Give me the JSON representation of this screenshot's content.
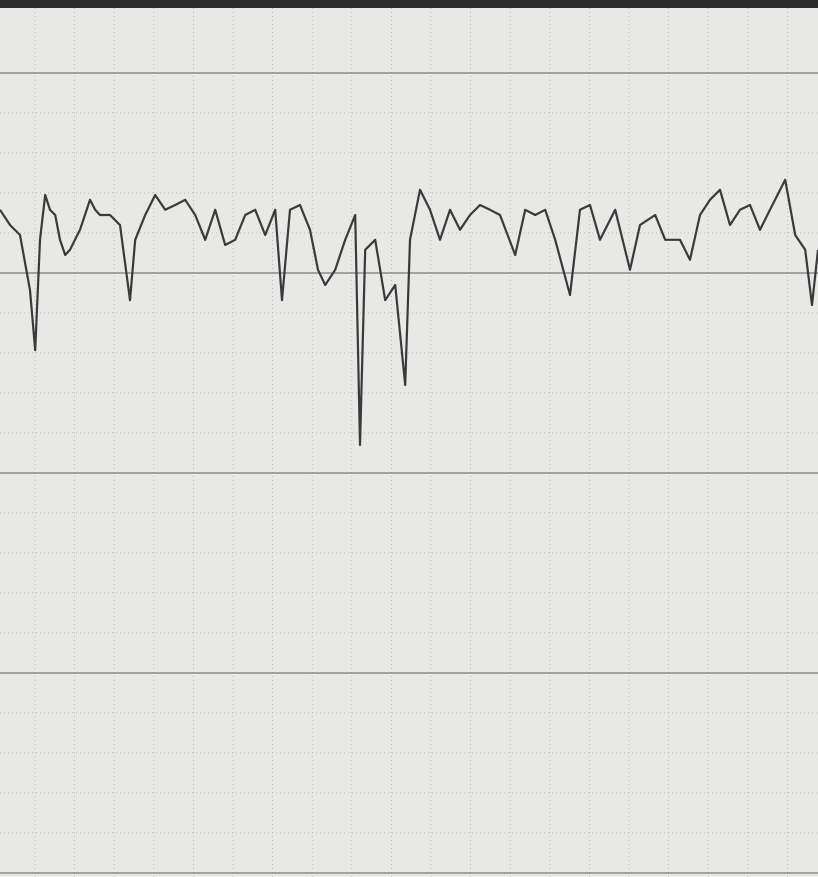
{
  "chart_data": {
    "type": "line",
    "color": "#3a3a3a",
    "xlim": [
      0,
      20.45
    ],
    "ylim": [
      -15.1,
      6.625
    ],
    "x": [
      0,
      0.25,
      0.5,
      0.75,
      0.88,
      1,
      1.13,
      1.25,
      1.38,
      1.5,
      1.63,
      1.75,
      2,
      2.25,
      2.38,
      2.5,
      2.75,
      3,
      3.25,
      3.38,
      3.63,
      3.88,
      4.13,
      4.38,
      4.63,
      4.88,
      5.13,
      5.38,
      5.63,
      5.88,
      6.13,
      6.38,
      6.63,
      6.88,
      7.05,
      7.25,
      7.5,
      7.75,
      7.95,
      8.13,
      8.38,
      8.63,
      8.88,
      9,
      9.13,
      9.38,
      9.63,
      9.88,
      10.13,
      10.25,
      10.5,
      10.75,
      11,
      11.25,
      11.5,
      11.75,
      12,
      12.25,
      12.5,
      12.88,
      13.13,
      13.38,
      13.63,
      13.88,
      14.25,
      14.5,
      14.75,
      15,
      15.38,
      15.75,
      16,
      16.38,
      16.63,
      17,
      17.25,
      17.5,
      17.75,
      18,
      18.25,
      18.5,
      18.75,
      19,
      19.25,
      19.63,
      19.88,
      20.13,
      20.3,
      20.45
    ],
    "values": [
      1.58,
      1.2,
      0.95,
      -0.43,
      -1.93,
      0.83,
      1.95,
      1.58,
      1.45,
      0.83,
      0.45,
      0.58,
      1.08,
      1.83,
      1.58,
      1.45,
      1.45,
      1.2,
      -0.68,
      0.83,
      1.45,
      1.95,
      1.58,
      1.7,
      1.83,
      1.45,
      0.83,
      1.58,
      0.7,
      0.83,
      1.45,
      1.58,
      0.95,
      1.58,
      -0.68,
      1.58,
      1.7,
      1.08,
      0.08,
      -0.3,
      0.08,
      0.83,
      1.45,
      -4.3,
      0.58,
      0.83,
      -0.68,
      -0.3,
      -2.8,
      0.83,
      2.08,
      1.58,
      0.83,
      1.58,
      1.08,
      1.45,
      1.7,
      1.58,
      1.45,
      0.45,
      1.58,
      1.45,
      1.58,
      0.83,
      -0.55,
      1.58,
      1.7,
      0.83,
      1.58,
      0.08,
      1.2,
      1.45,
      0.83,
      0.83,
      0.33,
      1.45,
      1.83,
      2.08,
      1.2,
      1.58,
      1.7,
      1.08,
      1.58,
      2.33,
      0.95,
      0.58,
      -0.8,
      0.58
    ]
  }
}
